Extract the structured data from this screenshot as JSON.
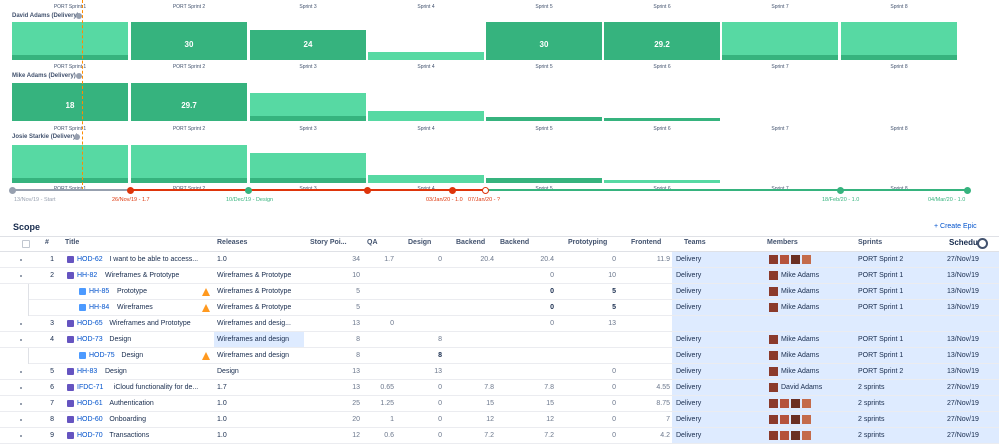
{
  "capacity": {
    "sprints": [
      "PORT Sprint 1",
      "PORT Sprint 2",
      "Sprint 3",
      "Sprint 4",
      "Sprint 5",
      "Sprint 6",
      "Sprint 7",
      "Sprint 8"
    ],
    "people": [
      {
        "name": "David Adams (Delivery)",
        "values": [
          null,
          30,
          24,
          null,
          30,
          29.2,
          null,
          null
        ]
      },
      {
        "name": "Mike Adams (Delivery)",
        "values": [
          18,
          29.7,
          null,
          null,
          null,
          null,
          null,
          null
        ]
      },
      {
        "name": "Josie Starkie (Delivery)",
        "values": [
          null,
          null,
          null,
          null,
          null,
          null,
          null,
          null
        ]
      }
    ]
  },
  "timeline": [
    "13/Nov/19 - Start",
    "26/Nov/19 - 1.7",
    "10/Dec/19 - Design",
    "03/Jan/20 - 1.0",
    "07/Jan/20 - ?",
    "18/Feb/20 - 1.0",
    "04/Mar/20 - 1.0"
  ],
  "scope": {
    "title": "Scope",
    "create": "+ Create Epic",
    "columns": [
      "#",
      "Title",
      "Releases",
      "Story Poi...",
      "QA",
      "Design",
      "Backend",
      "Backend",
      "Prototyping",
      "Frontend",
      "Teams",
      "Members",
      "Sprints",
      "Schedu"
    ],
    "rows": [
      {
        "num": 1,
        "key": "HOD-62",
        "title": "I want to be able to access...",
        "release": "1.0",
        "story": 34,
        "qa": 1.7,
        "design": 0,
        "backend": 20.4,
        "backend2": 20.4,
        "proto": 0,
        "frontend": 11.9,
        "team": "Delivery",
        "avatars": 4,
        "sprint": "PORT Sprint 2",
        "schedule": "27/Nov/19"
      },
      {
        "num": 2,
        "key": "HH-82",
        "title": "Wireframes & Prototype",
        "release": "Wireframes & Prototype",
        "story": 10,
        "backend2": 0,
        "proto": 10,
        "team": "Delivery",
        "member": "Mike Adams",
        "sprint": "PORT Sprint 1",
        "schedule": "13/Nov/19"
      },
      {
        "child": true,
        "warn": true,
        "key": "HH-85",
        "title": "Prototype",
        "release": "Wireframes & Prototype",
        "story": 5,
        "backend2": 0,
        "proto": 5,
        "bold": [
          "backend2",
          "proto"
        ],
        "team": "Delivery",
        "member": "Mike Adams",
        "sprint": "PORT Sprint 1",
        "schedule": "13/Nov/19"
      },
      {
        "child": true,
        "warn": true,
        "key": "HH-84",
        "title": "Wireframes",
        "release": "Wireframes & Prototype",
        "story": 5,
        "backend2": 0,
        "proto": 5,
        "bold": [
          "backend2",
          "proto"
        ],
        "team": "Delivery",
        "member": "Mike Adams",
        "sprint": "PORT Sprint 1",
        "schedule": "13/Nov/19"
      },
      {
        "num": 3,
        "key": "HOD-65",
        "title": "Wireframes and Prototype",
        "release": "Wireframes and desig...",
        "story": 13,
        "qa": 0,
        "backend2": 0,
        "proto": 13
      },
      {
        "num": 4,
        "key": "HOD-73",
        "title": "Design",
        "release": "Wireframes and design",
        "story": 8,
        "design": 8,
        "team": "Delivery",
        "member": "Mike Adams",
        "sprint": "PORT Sprint 1",
        "schedule": "13/Nov/19"
      },
      {
        "child": true,
        "warn": true,
        "key": "HOD-75",
        "title": "Design",
        "release": "Wireframes and design",
        "story": 8,
        "design": 8,
        "bold": [
          "design"
        ],
        "team": "Delivery",
        "member": "Mike Adams",
        "sprint": "PORT Sprint 1",
        "schedule": "13/Nov/19"
      },
      {
        "num": 5,
        "key": "HH-83",
        "title": "Design",
        "release": "Design",
        "story": 13,
        "design": 13,
        "proto": 0,
        "team": "Delivery",
        "member": "Mike Adams",
        "sprint": "PORT Sprint 2",
        "schedule": "13/Nov/19"
      },
      {
        "num": 6,
        "key": "IFDC-71",
        "title": "iCloud functionality for de...",
        "release": "1.7",
        "story": 13,
        "qa": 0.65,
        "design": 0,
        "backend": 7.8,
        "backend2": 7.8,
        "proto": 0,
        "frontend": 4.55,
        "team": "Delivery",
        "member": "David Adams",
        "sprint": "2 sprints",
        "schedule": "27/Nov/19"
      },
      {
        "num": 7,
        "key": "HOD-61",
        "title": "Authentication",
        "release": "1.0",
        "story": 25,
        "qa": 1.25,
        "design": 0,
        "backend": 15,
        "backend2": 15,
        "proto": 0,
        "frontend": 8.75,
        "team": "Delivery",
        "avatars": 4,
        "sprint": "2 sprints",
        "schedule": "27/Nov/19"
      },
      {
        "num": 8,
        "key": "HOD-60",
        "title": "Onboarding",
        "release": "1.0",
        "story": 20,
        "qa": 1,
        "design": 0,
        "backend": 12,
        "backend2": 12,
        "proto": 0,
        "frontend": 7,
        "team": "Delivery",
        "avatars": 4,
        "sprint": "2 sprints",
        "schedule": "27/Nov/19"
      },
      {
        "num": 9,
        "key": "HOD-70",
        "title": "Transactions",
        "release": "1.0",
        "story": 12,
        "qa": 0.6,
        "design": 0,
        "backend": 7.2,
        "backend2": 7.2,
        "proto": 0,
        "frontend": 4.2,
        "team": "Delivery",
        "avatars": 4,
        "sprint": "2 sprints",
        "schedule": "27/Nov/19"
      }
    ]
  }
}
